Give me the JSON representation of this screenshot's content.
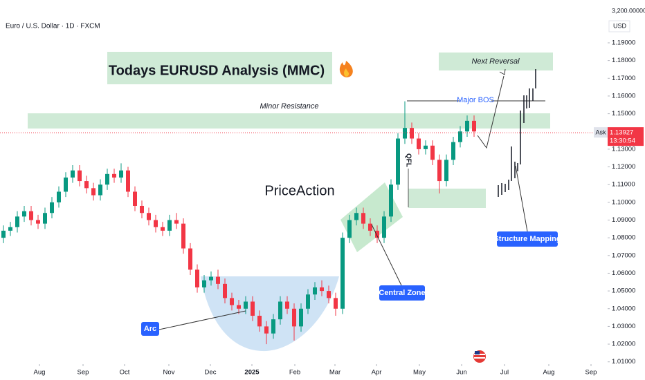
{
  "chart_data": {
    "type": "candlestick",
    "symbol": "Euro / U.S. Dollar · 1D · FXCM",
    "currency": "USD",
    "top_scale_label": "3,200.00000",
    "title": "Todays EURUSD Analysis (MMC)",
    "annotations": {
      "next_reversal": "Next Reversal",
      "minor_resistance": "Minor Resistance",
      "major_bos": "Major BOS",
      "qfl": "QFL",
      "price_action": "PriceAction",
      "arc": "Arc",
      "central_zone": "Central Zone",
      "structure_mapping": "Structure Mapping"
    },
    "ask_label": "Ask",
    "current_price": 1.13927,
    "countdown": "13:30:54",
    "up_color": "#089981",
    "down_color": "#f23645",
    "open": [
      1.08,
      1.084,
      1.086,
      1.092,
      1.095,
      1.09,
      1.088,
      1.094,
      1.1,
      1.106,
      1.114,
      1.118,
      1.112,
      1.108,
      1.104,
      1.11,
      1.116,
      1.114,
      1.118,
      1.106,
      1.098,
      1.094,
      1.09,
      1.086,
      1.084,
      1.09,
      1.088,
      1.074,
      1.062,
      1.052,
      1.056,
      1.058,
      1.054,
      1.046,
      1.042,
      1.04,
      1.044,
      1.036,
      1.03,
      1.026,
      1.034,
      1.044,
      1.04,
      1.03,
      1.04,
      1.048,
      1.052,
      1.05,
      1.046,
      1.04,
      1.08,
      1.09,
      1.094,
      1.088,
      1.084,
      1.08,
      1.092,
      1.11,
      1.136,
      1.142,
      1.136,
      1.13,
      1.132,
      1.124,
      1.112,
      1.124,
      1.134,
      1.14,
      1.146
    ],
    "high": [
      1.087,
      1.089,
      1.095,
      1.098,
      1.098,
      1.093,
      1.097,
      1.103,
      1.109,
      1.117,
      1.121,
      1.121,
      1.115,
      1.111,
      1.113,
      1.119,
      1.119,
      1.122,
      1.12,
      1.109,
      1.101,
      1.097,
      1.093,
      1.089,
      1.093,
      1.094,
      1.091,
      1.077,
      1.065,
      1.059,
      1.061,
      1.062,
      1.057,
      1.049,
      1.045,
      1.047,
      1.047,
      1.039,
      1.033,
      1.037,
      1.047,
      1.047,
      1.043,
      1.043,
      1.051,
      1.055,
      1.056,
      1.053,
      1.049,
      1.083,
      1.093,
      1.097,
      1.097,
      1.091,
      1.087,
      1.095,
      1.113,
      1.139,
      1.157,
      1.145,
      1.139,
      1.135,
      1.135,
      1.127,
      1.127,
      1.137,
      1.143,
      1.149,
      1.149
    ],
    "low": [
      1.077,
      1.081,
      1.083,
      1.089,
      1.087,
      1.085,
      1.085,
      1.091,
      1.097,
      1.103,
      1.111,
      1.109,
      1.105,
      1.101,
      1.101,
      1.107,
      1.111,
      1.111,
      1.103,
      1.095,
      1.091,
      1.087,
      1.083,
      1.081,
      1.081,
      1.085,
      1.071,
      1.059,
      1.049,
      1.049,
      1.053,
      1.051,
      1.043,
      1.039,
      1.037,
      1.037,
      1.033,
      1.027,
      1.02,
      1.023,
      1.031,
      1.037,
      1.022,
      1.027,
      1.037,
      1.045,
      1.047,
      1.043,
      1.036,
      1.037,
      1.077,
      1.087,
      1.085,
      1.081,
      1.077,
      1.077,
      1.089,
      1.107,
      1.133,
      1.133,
      1.127,
      1.127,
      1.121,
      1.105,
      1.109,
      1.121,
      1.131,
      1.137,
      1.137
    ],
    "close": [
      1.084,
      1.086,
      1.092,
      1.095,
      1.09,
      1.088,
      1.094,
      1.1,
      1.106,
      1.114,
      1.118,
      1.112,
      1.108,
      1.104,
      1.11,
      1.116,
      1.114,
      1.118,
      1.106,
      1.098,
      1.094,
      1.09,
      1.086,
      1.084,
      1.09,
      1.088,
      1.074,
      1.062,
      1.052,
      1.056,
      1.058,
      1.054,
      1.046,
      1.042,
      1.04,
      1.044,
      1.036,
      1.03,
      1.026,
      1.034,
      1.044,
      1.04,
      1.03,
      1.04,
      1.048,
      1.052,
      1.05,
      1.046,
      1.04,
      1.08,
      1.09,
      1.094,
      1.088,
      1.084,
      1.08,
      1.092,
      1.11,
      1.136,
      1.142,
      1.136,
      1.13,
      1.132,
      1.124,
      1.112,
      1.124,
      1.134,
      1.14,
      1.146,
      1.14
    ],
    "xlim": [
      -0.5,
      87
    ],
    "xticks": [
      {
        "value": 5.2,
        "label": "Aug"
      },
      {
        "value": 11.5,
        "label": "Sep"
      },
      {
        "value": 17.5,
        "label": "Oct"
      },
      {
        "value": 23.9,
        "label": "Nov"
      },
      {
        "value": 29.9,
        "label": "Dec"
      },
      {
        "value": 35.9,
        "label": "2025"
      },
      {
        "value": 42.1,
        "label": "Feb"
      },
      {
        "value": 47.9,
        "label": "Mar"
      },
      {
        "value": 53.9,
        "label": "Apr"
      },
      {
        "value": 60.1,
        "label": "May"
      },
      {
        "value": 66.2,
        "label": "Jun"
      },
      {
        "value": 72.4,
        "label": "Jul"
      },
      {
        "value": 78.8,
        "label": "Aug"
      },
      {
        "value": 84.9,
        "label": "Sep"
      }
    ],
    "ylim": [
      1.0095,
      1.21417
    ],
    "yticks": [
      {
        "value": 1.01,
        "label": "1.01000"
      },
      {
        "value": 1.02,
        "label": "1.02000"
      },
      {
        "value": 1.03,
        "label": "1.03000"
      },
      {
        "value": 1.04,
        "label": "1.04000"
      },
      {
        "value": 1.05,
        "label": "1.05000"
      },
      {
        "value": 1.06,
        "label": "1.06000"
      },
      {
        "value": 1.07,
        "label": "1.07000"
      },
      {
        "value": 1.08,
        "label": "1.08000"
      },
      {
        "value": 1.09,
        "label": "1.09000"
      },
      {
        "value": 1.1,
        "label": "1.10000"
      },
      {
        "value": 1.11,
        "label": "1.11000"
      },
      {
        "value": 1.12,
        "label": "1.12000"
      },
      {
        "value": 1.13,
        "label": "1.13000"
      },
      {
        "value": 1.15,
        "label": "1.15000"
      },
      {
        "value": 1.16,
        "label": "1.16000"
      },
      {
        "value": 1.17,
        "label": "1.17000"
      },
      {
        "value": 1.18,
        "label": "1.18000"
      },
      {
        "value": 1.19,
        "label": "1.19000"
      }
    ],
    "grid": false
  }
}
